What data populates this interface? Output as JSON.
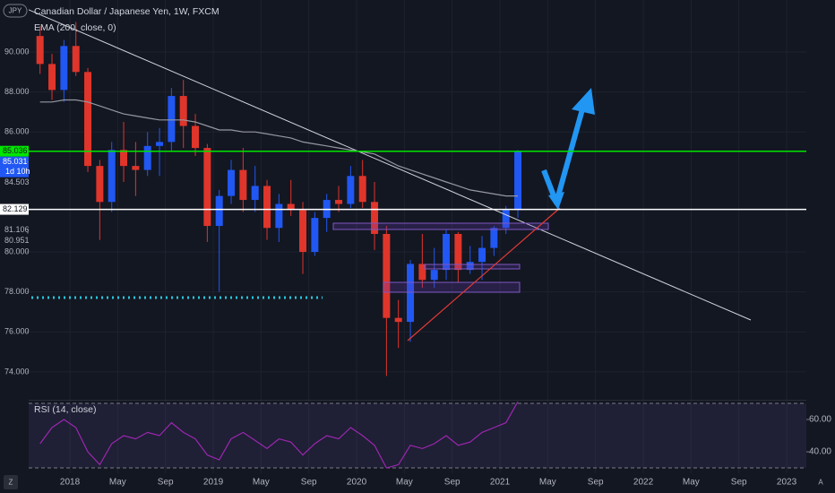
{
  "chart_data": {
    "type": "candlestick",
    "title": "Canadian Dollar / Japanese Yen, 1W, FXCM",
    "symbol_badge": "JPY",
    "indicator": "EMA (200, close, 0)",
    "rsi_title": "RSI (14, close)",
    "countdown": "1d 10h",
    "scale_buttons": [
      "Z",
      "A"
    ],
    "x": [
      "2017-10",
      "2017-11",
      "2017-12",
      "2018-01",
      "2018-02",
      "2018-03",
      "2018-04",
      "2018-05",
      "2018-06",
      "2018-07",
      "2018-08",
      "2018-09",
      "2018-10",
      "2018-11",
      "2018-12",
      "2019-01",
      "2019-02",
      "2019-03",
      "2019-04",
      "2019-05",
      "2019-06",
      "2019-07",
      "2019-08",
      "2019-09",
      "2019-10",
      "2019-11",
      "2019-12",
      "2020-01",
      "2020-02",
      "2020-03",
      "2020-04",
      "2020-05",
      "2020-06",
      "2020-07",
      "2020-08",
      "2020-09",
      "2020-10",
      "2020-11",
      "2020-12",
      "2021-01",
      "2021-02"
    ],
    "open": [
      90.8,
      89.4,
      88.1,
      90.3,
      89.0,
      84.3,
      82.5,
      85.1,
      84.3,
      84.1,
      85.3,
      85.5,
      87.8,
      86.3,
      85.2,
      81.3,
      82.8,
      84.1,
      82.6,
      83.3,
      81.2,
      82.4,
      82.1,
      80.0,
      81.7,
      82.6,
      82.4,
      83.8,
      82.5,
      80.9,
      76.7,
      76.5,
      79.4,
      78.6,
      79.1,
      80.9,
      79.1,
      79.5,
      80.2,
      81.2,
      82.1
    ],
    "high": [
      91.3,
      89.9,
      90.6,
      91.5,
      89.2,
      84.6,
      85.5,
      86.5,
      85.5,
      86.0,
      86.2,
      88.2,
      88.6,
      86.9,
      85.4,
      83.1,
      84.6,
      85.2,
      84.3,
      83.6,
      82.9,
      83.6,
      82.5,
      82.0,
      82.9,
      83.3,
      84.3,
      84.6,
      83.5,
      81.3,
      77.6,
      79.6,
      80.9,
      80.2,
      81.1,
      81.0,
      80.3,
      80.8,
      81.3,
      82.3,
      85.1
    ],
    "low": [
      88.9,
      87.6,
      87.5,
      88.8,
      84.0,
      80.6,
      82.0,
      83.5,
      82.8,
      83.8,
      83.8,
      85.0,
      85.2,
      84.8,
      80.5,
      78.0,
      82.4,
      82.0,
      82.0,
      80.6,
      80.5,
      81.8,
      78.9,
      79.8,
      81.0,
      82.0,
      82.2,
      82.2,
      80.1,
      73.8,
      75.2,
      75.5,
      78.2,
      78.2,
      78.6,
      78.5,
      78.9,
      78.6,
      79.8,
      80.9,
      81.7
    ],
    "close": [
      89.4,
      88.1,
      90.3,
      89.0,
      84.3,
      82.5,
      85.1,
      84.3,
      84.1,
      85.3,
      85.5,
      87.8,
      86.3,
      85.2,
      81.3,
      82.8,
      84.1,
      82.6,
      83.3,
      81.2,
      82.4,
      82.1,
      80.0,
      81.7,
      82.6,
      82.4,
      83.8,
      82.5,
      80.9,
      76.7,
      76.5,
      79.4,
      78.6,
      79.1,
      80.9,
      79.1,
      79.5,
      80.2,
      81.2,
      82.1,
      85.0
    ],
    "ema": [
      87.5,
      87.5,
      87.6,
      87.6,
      87.5,
      87.3,
      87.1,
      86.9,
      86.8,
      86.7,
      86.6,
      86.6,
      86.6,
      86.5,
      86.3,
      86.1,
      86.1,
      86.0,
      86.0,
      85.9,
      85.8,
      85.7,
      85.5,
      85.4,
      85.3,
      85.2,
      85.1,
      85.0,
      84.9,
      84.6,
      84.3,
      84.1,
      83.9,
      83.7,
      83.5,
      83.3,
      83.1,
      83.0,
      82.9,
      82.8,
      82.8
    ],
    "rsi": [
      45,
      55,
      60,
      55,
      40,
      32,
      45,
      50,
      48,
      52,
      50,
      58,
      52,
      48,
      38,
      35,
      48,
      52,
      47,
      42,
      48,
      46,
      38,
      45,
      50,
      48,
      55,
      50,
      44,
      30,
      32,
      44,
      42,
      45,
      50,
      44,
      46,
      52,
      55,
      58,
      71
    ],
    "up_color": "#2157f3",
    "down_color": "#e0352b",
    "ema_color": "#9598a1",
    "rsi_color": "#9c27b0",
    "xlim": [
      "2017-09",
      "2023-03"
    ],
    "xticks": [
      {
        "value": "2018-01",
        "label": "2018"
      },
      {
        "value": "2018-05",
        "label": "May"
      },
      {
        "value": "2018-09",
        "label": "Sep"
      },
      {
        "value": "2019-01",
        "label": "2019"
      },
      {
        "value": "2019-05",
        "label": "May"
      },
      {
        "value": "2019-09",
        "label": "Sep"
      },
      {
        "value": "2020-01",
        "label": "2020"
      },
      {
        "value": "2020-05",
        "label": "May"
      },
      {
        "value": "2020-09",
        "label": "Sep"
      },
      {
        "value": "2021-01",
        "label": "2021"
      },
      {
        "value": "2021-05",
        "label": "May"
      },
      {
        "value": "2021-09",
        "label": "Sep"
      },
      {
        "value": "2022-01",
        "label": "2022"
      },
      {
        "value": "2022-05",
        "label": "May"
      },
      {
        "value": "2022-09",
        "label": "Sep"
      },
      {
        "value": "2023-01",
        "label": "2023"
      }
    ],
    "ylim": [
      72.65,
      92.6
    ],
    "yticks": [
      {
        "value": 90,
        "label": "90.000"
      },
      {
        "value": 88,
        "label": "88.000"
      },
      {
        "value": 86,
        "label": "86.000"
      },
      {
        "value": 80,
        "label": "80.000"
      },
      {
        "value": 78,
        "label": "78.000"
      },
      {
        "value": 76,
        "label": "76.000"
      },
      {
        "value": 74,
        "label": "74.000"
      }
    ],
    "price_labels": [
      {
        "value": 85.036,
        "label": "85.036",
        "color": "#00e600",
        "text_color": "#131722"
      },
      {
        "value": 85.031,
        "label": "85.031",
        "color": "#2157f3",
        "text_color": "#ffffff"
      },
      {
        "value": 84.503,
        "label": "84.503"
      },
      {
        "value": 82.129,
        "label": "82.129",
        "color": "#ffffff",
        "text_color": "#131722"
      },
      {
        "value": 81.106,
        "label": "81.106"
      },
      {
        "value": 80.951,
        "label": "80.951"
      }
    ],
    "rsi_ylim": [
      26.7,
      72.2
    ],
    "rsi_yticks": [
      {
        "value": 60,
        "label": "60.00"
      },
      {
        "value": 40,
        "label": "40.00"
      }
    ],
    "rsi_levels": [
      70,
      30
    ]
  }
}
